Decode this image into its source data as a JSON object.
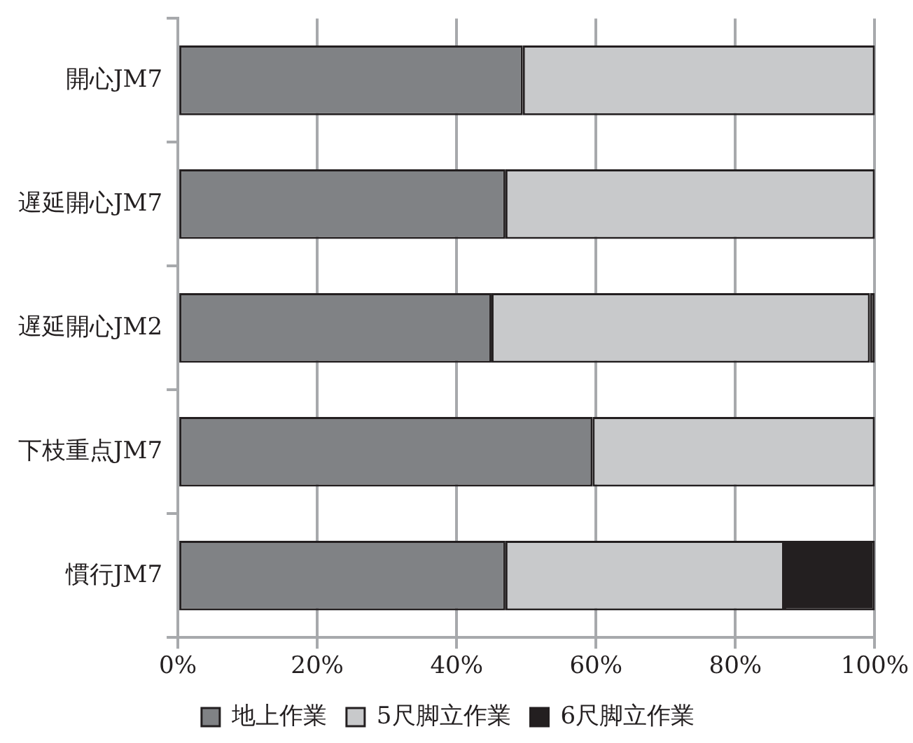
{
  "chart_data": {
    "type": "bar",
    "orientation": "horizontal",
    "stacked": true,
    "categories": [
      "開心JM7",
      "遅延開心JM7",
      "遅延開心JM2",
      "下枝重点JM7",
      "慣行JM7"
    ],
    "series": [
      {
        "name": "地上作業",
        "color": "#808285",
        "values": [
          49.5,
          47,
          45,
          59.5,
          47
        ]
      },
      {
        "name": "5尺脚立作業",
        "color": "#c8c9cb",
        "values": [
          50.5,
          53,
          54.3,
          40.5,
          40
        ]
      },
      {
        "name": "6尺脚立作業",
        "color": "#231f20",
        "values": [
          null,
          null,
          0.7,
          null,
          13
        ]
      }
    ],
    "xlim": [
      0,
      100
    ],
    "xticks": [
      {
        "value": 0,
        "label": "0%"
      },
      {
        "value": 20,
        "label": "20%"
      },
      {
        "value": 40,
        "label": "40%"
      },
      {
        "value": 60,
        "label": "60%"
      },
      {
        "value": 80,
        "label": "80%"
      },
      {
        "value": 100,
        "label": "100%"
      }
    ],
    "grid": "x",
    "legend": "bottom"
  }
}
